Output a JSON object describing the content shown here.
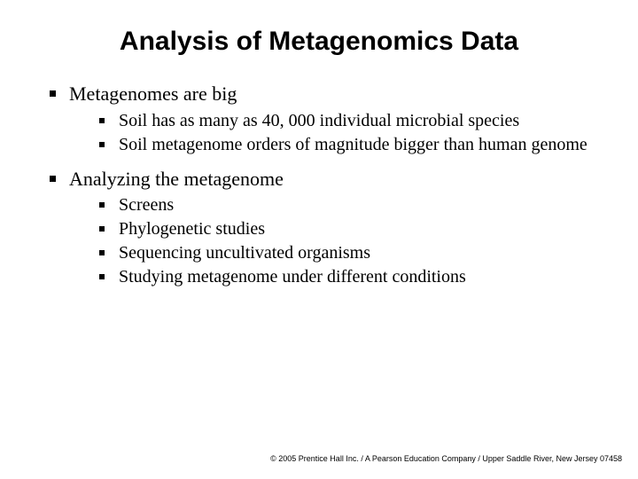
{
  "title": "Analysis of Metagenomics Data",
  "bullets": [
    {
      "text": "Metagenomes are big",
      "sub": [
        "Soil has as many as 40, 000 individual microbial species",
        "Soil metagenome orders of magnitude bigger than human genome"
      ]
    },
    {
      "text": "Analyzing the metagenome",
      "sub": [
        "Screens",
        "Phylogenetic studies",
        "Sequencing uncultivated organisms",
        "Studying metagenome under different conditions"
      ]
    }
  ],
  "footer": "© 2005 Prentice Hall Inc. / A Pearson Education Company / Upper Saddle River, New Jersey 07458"
}
